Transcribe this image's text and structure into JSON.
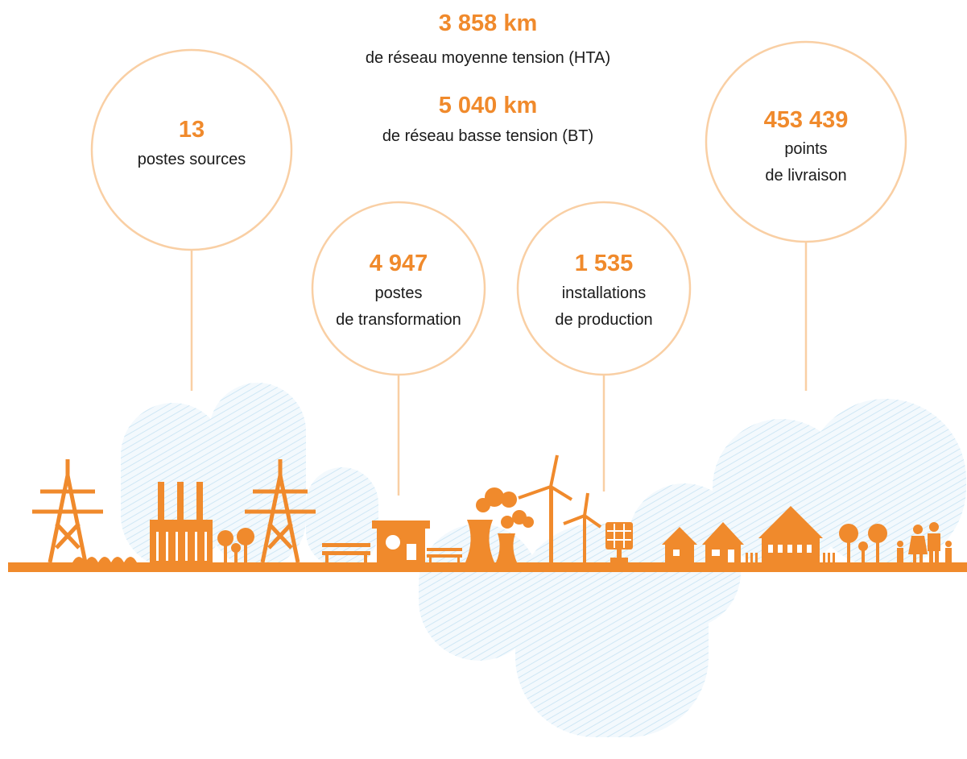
{
  "network": [
    {
      "value": "3 858 km",
      "label": "de réseau moyenne tension (HTA)"
    },
    {
      "value": "5 040 km",
      "label": "de réseau basse tension (BT)"
    }
  ],
  "circles": [
    {
      "value": "13",
      "lines": [
        "postes sources"
      ]
    },
    {
      "value": "4 947",
      "lines": [
        "postes",
        "de transformation"
      ]
    },
    {
      "value": "1 535",
      "lines": [
        "installations",
        "de production"
      ]
    },
    {
      "value": "453 439",
      "lines": [
        "points",
        "de livraison"
      ]
    }
  ]
}
